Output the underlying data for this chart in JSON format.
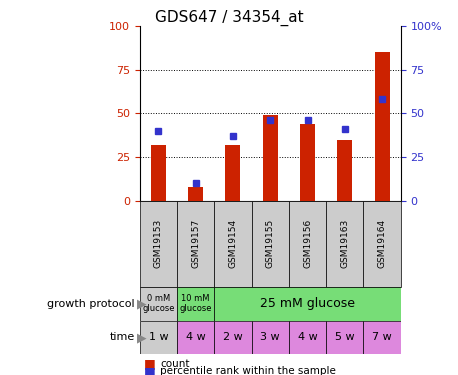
{
  "title": "GDS647 / 34354_at",
  "samples": [
    "GSM19153",
    "GSM19157",
    "GSM19154",
    "GSM19155",
    "GSM19156",
    "GSM19163",
    "GSM19164"
  ],
  "count_values": [
    32,
    8,
    32,
    49,
    44,
    35,
    85
  ],
  "percentile_values": [
    40,
    10,
    37,
    46,
    46,
    41,
    58
  ],
  "ylim": [
    0,
    100
  ],
  "yticks": [
    0,
    25,
    50,
    75,
    100
  ],
  "bar_color": "#cc2200",
  "dot_color": "#3333cc",
  "bar_width": 0.4,
  "time_labels": [
    "1 w",
    "4 w",
    "2 w",
    "3 w",
    "4 w",
    "5 w",
    "7 w"
  ],
  "time_colors_hex": [
    "#cccccc",
    "#dd88dd",
    "#dd88dd",
    "#dd88dd",
    "#dd88dd",
    "#dd88dd",
    "#dd88dd"
  ],
  "gp_colors_hex": [
    "#cccccc",
    "#77dd77",
    "#77dd77"
  ],
  "legend_count_color": "#cc2200",
  "legend_dot_color": "#3333cc",
  "title_fontsize": 11,
  "tick_fontsize": 8,
  "axis_color_left": "#cc2200",
  "axis_color_right": "#3333cc",
  "sample_bg": "#cccccc",
  "label_fontsize": 7,
  "row_label_fontsize": 8
}
